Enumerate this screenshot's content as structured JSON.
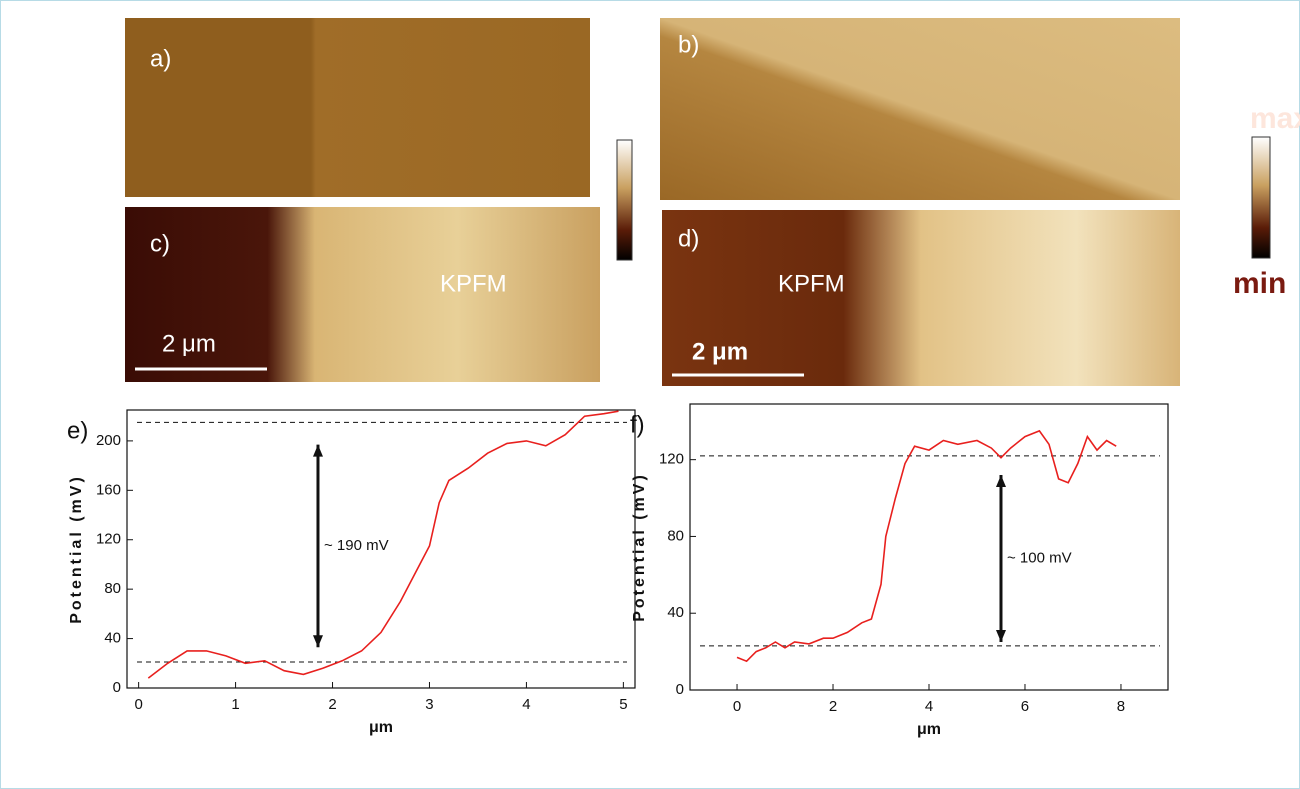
{
  "panels": {
    "a": "a)",
    "b": "b)",
    "c": "c)",
    "d": "d)",
    "c_mode": "KPFM",
    "d_mode": "KPFM",
    "c_scale": "2 μm",
    "d_scale": "2 μm",
    "colorbar_max": "max",
    "colorbar_min": "min"
  },
  "chart_data": [
    {
      "type": "line",
      "label": "e)",
      "x_label": "μm",
      "y_label": "Potential (mV)",
      "annotation": "~ 190 mV",
      "x": [
        0.1,
        0.3,
        0.5,
        0.7,
        0.9,
        1.1,
        1.3,
        1.5,
        1.7,
        1.9,
        2.1,
        2.3,
        2.5,
        2.7,
        2.9,
        3.0,
        3.1,
        3.2,
        3.4,
        3.6,
        3.8,
        4.0,
        4.2,
        4.4,
        4.6,
        4.8,
        4.95
      ],
      "series": [
        {
          "color": "#e8201e",
          "values": [
            8,
            20,
            30,
            30,
            26,
            20,
            22,
            14,
            11,
            16,
            22,
            30,
            45,
            70,
            100,
            115,
            150,
            168,
            178,
            190,
            198,
            200,
            196,
            205,
            220,
            222,
            224
          ]
        }
      ],
      "ref_lines": [
        215,
        21
      ],
      "arrow": {
        "x": 1.85,
        "y": [
          33,
          197
        ]
      },
      "xlim": [
        -0.12,
        5.12
      ],
      "ylim": [
        0,
        225
      ],
      "xticks": [
        0,
        1,
        2,
        3,
        4,
        5
      ],
      "yticks": [
        0,
        40,
        80,
        120,
        160,
        200
      ]
    },
    {
      "type": "line",
      "label": "f)",
      "x_label": "μm",
      "y_label": "Potential (mV)",
      "annotation": "~ 100 mV",
      "x": [
        0,
        0.2,
        0.4,
        0.6,
        0.8,
        1.0,
        1.2,
        1.5,
        1.8,
        2.0,
        2.3,
        2.6,
        2.8,
        3.0,
        3.1,
        3.3,
        3.5,
        3.7,
        4.0,
        4.3,
        4.6,
        5.0,
        5.3,
        5.5,
        5.7,
        6.0,
        6.3,
        6.5,
        6.7,
        6.9,
        7.1,
        7.3,
        7.5,
        7.7,
        7.9
      ],
      "series": [
        {
          "color": "#e8201e",
          "values": [
            17,
            15,
            20,
            22,
            25,
            22,
            25,
            24,
            27,
            27,
            30,
            35,
            37,
            55,
            80,
            100,
            118,
            127,
            125,
            130,
            128,
            130,
            126,
            121,
            126,
            132,
            135,
            128,
            110,
            108,
            118,
            132,
            125,
            130,
            127
          ]
        }
      ],
      "ref_lines": [
        122,
        23
      ],
      "arrow": {
        "x": 5.5,
        "y": [
          25,
          112
        ]
      },
      "xlim": [
        -0.98,
        8.98
      ],
      "ylim": [
        0,
        149
      ],
      "xticks": [
        0,
        2,
        4,
        6,
        8
      ],
      "yticks": [
        0,
        40,
        80,
        120
      ]
    }
  ]
}
